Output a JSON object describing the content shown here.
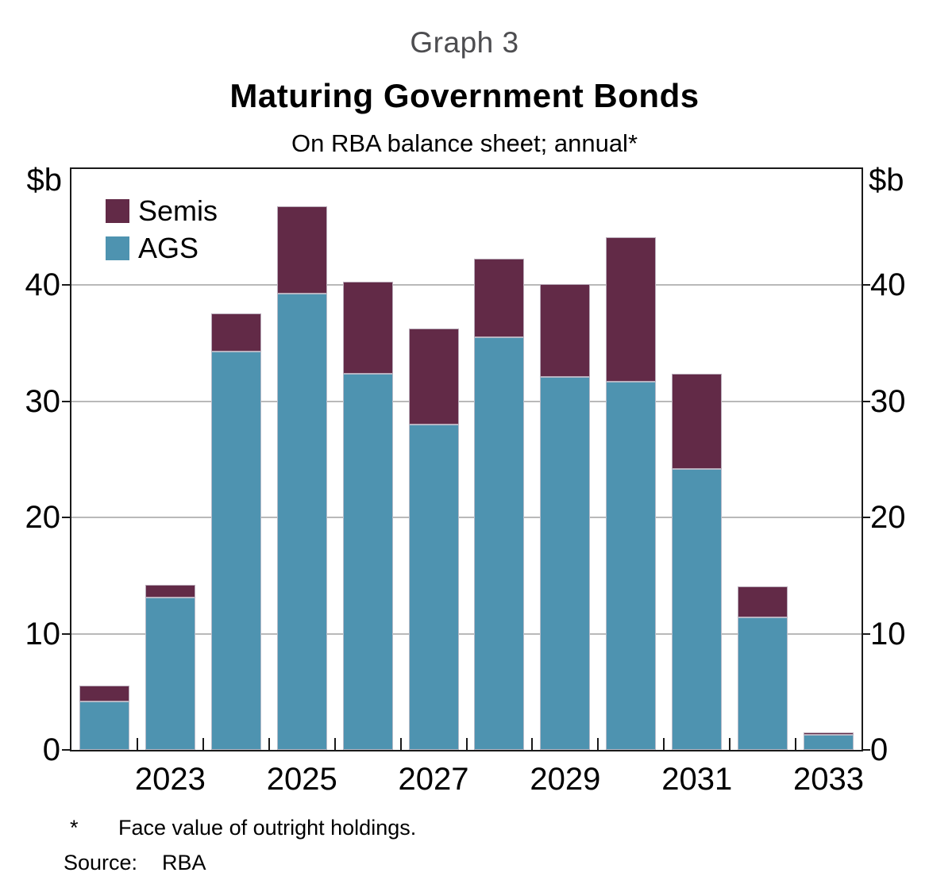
{
  "graph_label": "Graph 3",
  "title": "Maturing Government Bonds",
  "subtitle": "On RBA balance sheet; annual*",
  "unit_left": "$b",
  "unit_right": "$b",
  "legend": {
    "items": [
      {
        "label": "Semis",
        "color": "#622A47"
      },
      {
        "label": "AGS",
        "color": "#4E93B0"
      }
    ]
  },
  "footnote": {
    "marker": "*",
    "text": "Face value of outright holdings."
  },
  "source": {
    "label": "Source:",
    "value": "RBA"
  },
  "colors": {
    "semis": "#622A47",
    "ags": "#4E93B0",
    "gridline": "#b9b9b9",
    "axis": "#1a1a1a",
    "graph_label_gray": "#4d4d50"
  },
  "chart_data": {
    "type": "bar",
    "stacked": true,
    "title": "Maturing Government Bonds",
    "subtitle": "On RBA balance sheet; annual*",
    "ylabel": "$b",
    "ylim": [
      0,
      50
    ],
    "yticks": [
      0,
      10,
      20,
      30,
      40
    ],
    "grid": true,
    "legend_position": "top-left",
    "categories": [
      "2022",
      "2023",
      "2024",
      "2025",
      "2026",
      "2027",
      "2028",
      "2029",
      "2030",
      "2031",
      "2032",
      "2033"
    ],
    "xtick_labels": [
      "2023",
      "2025",
      "2027",
      "2029",
      "2031",
      "2033"
    ],
    "xtick_category_indices": [
      1,
      3,
      5,
      7,
      9,
      11
    ],
    "series": [
      {
        "name": "AGS",
        "color": "#4E93B0",
        "values": [
          4.2,
          13.1,
          34.3,
          39.3,
          32.4,
          28.0,
          35.5,
          32.1,
          31.7,
          24.2,
          11.4,
          1.3
        ]
      },
      {
        "name": "Semis",
        "color": "#622A47",
        "values": [
          1.3,
          1.1,
          3.3,
          7.5,
          7.9,
          8.3,
          6.8,
          8.0,
          12.4,
          8.2,
          2.7,
          0.2
        ]
      }
    ]
  }
}
